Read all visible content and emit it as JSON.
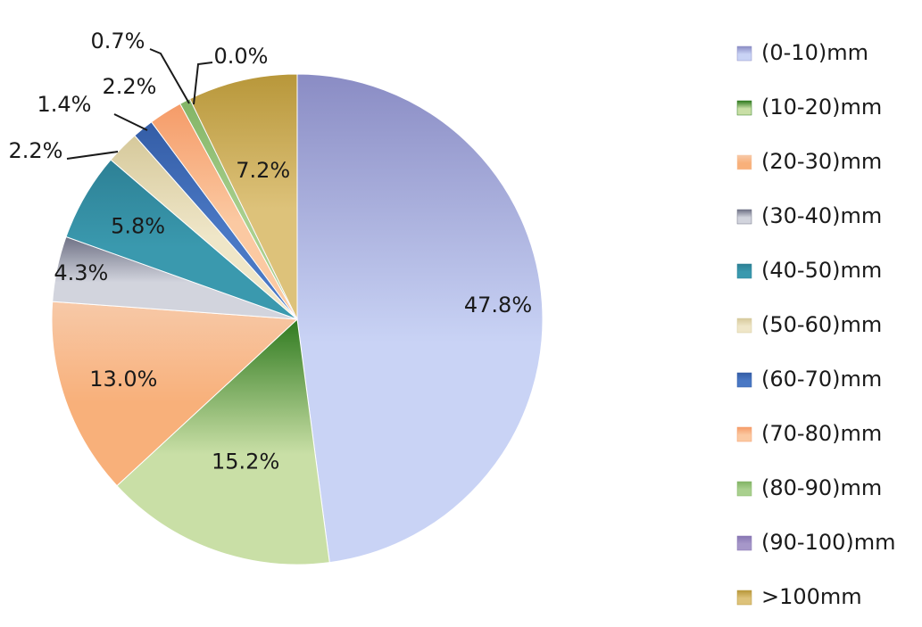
{
  "chart_data": {
    "type": "pie",
    "start_angle_deg": 0,
    "direction": "clockwise",
    "value_format": "percent_one_decimal",
    "legend_position": "right",
    "slices": [
      {
        "label": "(0-10)mm",
        "value": 47.8,
        "color": "#c9d3f5",
        "color_dark": "#8a8cc4"
      },
      {
        "label": "(10-20)mm",
        "value": 15.2,
        "color": "#c9dfa6",
        "color_dark": "#2f7a1f"
      },
      {
        "label": "(20-30)mm",
        "value": 13.0,
        "color": "#f8b07a",
        "color_dark": "#f7c9a8"
      },
      {
        "label": "(30-40)mm",
        "value": 4.3,
        "color": "#d2d4dd",
        "color_dark": "#6e7185"
      },
      {
        "label": "(40-50)mm",
        "value": 5.8,
        "color": "#3a99ae",
        "color_dark": "#2d8095"
      },
      {
        "label": "(50-60)mm",
        "value": 2.2,
        "color": "#efe6c8",
        "color_dark": "#d6c99b"
      },
      {
        "label": "(60-70)mm",
        "value": 1.4,
        "color": "#4a78c4",
        "color_dark": "#345da6"
      },
      {
        "label": "(70-80)mm",
        "value": 2.2,
        "color": "#fbc9a2",
        "color_dark": "#f59b68"
      },
      {
        "label": "(80-90)mm",
        "value": 0.7,
        "color": "#a9d08e",
        "color_dark": "#82b465"
      },
      {
        "label": "(90-100)mm",
        "value": 0.0,
        "color": "#a697c9",
        "color_dark": "#8877b3"
      },
      {
        "label": ">100mm",
        "value": 7.2,
        "color": "#ddc27a",
        "color_dark": "#b8973a"
      }
    ],
    "value_labels": [
      "47.8%",
      "15.2%",
      "13.0%",
      "4.3%",
      "5.8%",
      "2.2%",
      "1.4%",
      "2.2%",
      "0.7%",
      "0.0%",
      "7.2%"
    ]
  }
}
